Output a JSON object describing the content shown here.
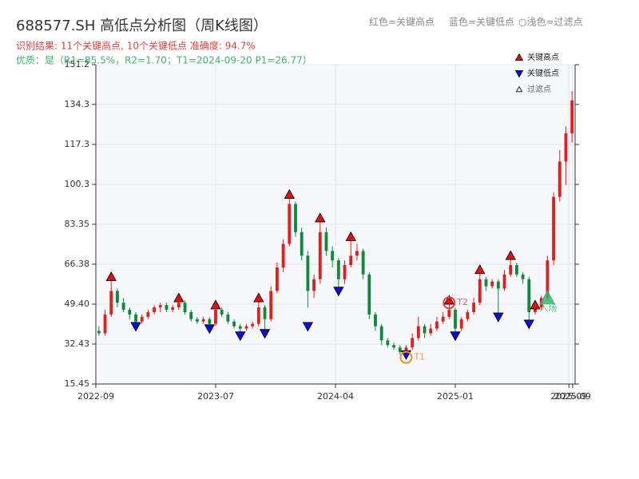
{
  "chart_data": {
    "type": "candlestick",
    "title": "688577.SH 高低点分析图（周K线图）",
    "subtitle": "识别结果: 11个关键高点, 10个关键低点  准确度: 94.7%",
    "quality": "优质：是（R1=85.5%，R2=1.70；T1=2024-09-20 P1=26.77）",
    "top_legend": [
      "红色=关键高点",
      "蓝色=关键低点",
      "○浅色=过滤点"
    ],
    "legend": [
      "关键高点",
      "关键低点",
      "过滤点"
    ],
    "up_color": "#e02020",
    "down_color": "#14883a",
    "high_color": "#e01010",
    "low_color": "#1010d0",
    "xlim": [
      0,
      78
    ],
    "xticks": [
      {
        "value": 0,
        "label": "2022-09"
      },
      {
        "value": 19.5,
        "label": "2023-07"
      },
      {
        "value": 39,
        "label": "2024-04"
      },
      {
        "value": 58.5,
        "label": "2025-01"
      },
      {
        "value": 77,
        "label": "2025-09"
      },
      {
        "value": 77.6,
        "label": "2025-09"
      }
    ],
    "ylim": [
      15.45,
      151.2
    ],
    "yticks": [
      15.45,
      32.43,
      {
        "value": 49.4,
        "label": "49.40"
      },
      66.38,
      83.35,
      100.3,
      117.3,
      134.3,
      151.2
    ],
    "grid": true,
    "ohlc": [
      [
        38,
        40,
        36,
        37
      ],
      [
        37,
        47,
        36,
        45
      ],
      [
        45,
        60,
        44,
        55
      ],
      [
        55,
        56,
        48,
        50
      ],
      [
        50,
        52,
        46,
        47
      ],
      [
        47,
        48,
        43,
        45
      ],
      [
        45,
        46,
        41,
        42
      ],
      [
        42,
        45,
        41,
        44
      ],
      [
        44,
        47,
        43,
        46
      ],
      [
        46,
        49,
        45,
        48
      ],
      [
        48,
        50,
        46,
        49
      ],
      [
        49,
        50,
        46,
        47
      ],
      [
        47,
        49,
        46,
        48
      ],
      [
        48,
        51,
        47,
        50
      ],
      [
        50,
        51,
        45,
        46
      ],
      [
        46,
        47,
        42,
        43
      ],
      [
        43,
        44,
        41,
        42
      ],
      [
        42,
        44,
        41,
        43
      ],
      [
        43,
        44,
        40,
        41
      ],
      [
        41,
        48,
        40,
        47
      ],
      [
        47,
        48,
        44,
        45
      ],
      [
        45,
        46,
        41,
        42
      ],
      [
        42,
        43,
        39,
        40
      ],
      [
        40,
        41,
        37,
        39
      ],
      [
        39,
        41,
        38,
        40
      ],
      [
        40,
        42,
        39,
        41
      ],
      [
        41,
        51,
        40,
        48
      ],
      [
        48,
        49,
        38,
        43
      ],
      [
        43,
        57,
        42,
        55
      ],
      [
        55,
        67,
        54,
        65
      ],
      [
        65,
        77,
        63,
        75
      ],
      [
        75,
        95,
        74,
        92
      ],
      [
        92,
        93,
        78,
        80
      ],
      [
        80,
        82,
        68,
        70
      ],
      [
        70,
        72,
        48,
        55
      ],
      [
        55,
        62,
        52,
        60
      ],
      [
        60,
        85,
        58,
        80
      ],
      [
        80,
        82,
        70,
        72
      ],
      [
        72,
        74,
        65,
        68
      ],
      [
        68,
        69,
        56,
        60
      ],
      [
        60,
        68,
        58,
        66
      ],
      [
        66,
        77,
        65,
        70
      ],
      [
        70,
        75,
        68,
        72
      ],
      [
        72,
        73,
        60,
        62
      ],
      [
        62,
        63,
        43,
        45
      ],
      [
        45,
        46,
        38,
        40
      ],
      [
        40,
        41,
        32,
        34
      ],
      [
        34,
        35,
        31,
        32
      ],
      [
        32,
        33,
        30,
        31
      ],
      [
        31,
        32,
        28,
        29
      ],
      [
        29,
        32,
        28,
        31
      ],
      [
        31,
        37,
        30,
        35
      ],
      [
        35,
        44,
        34,
        40
      ],
      [
        40,
        41,
        35,
        37
      ],
      [
        37,
        41,
        36,
        39
      ],
      [
        39,
        44,
        38,
        42
      ],
      [
        42,
        46,
        41,
        44
      ],
      [
        44,
        50,
        43,
        47
      ],
      [
        47,
        48,
        37,
        39
      ],
      [
        39,
        44,
        38,
        43
      ],
      [
        43,
        47,
        42,
        46
      ],
      [
        46,
        52,
        45,
        50
      ],
      [
        50,
        63,
        49,
        60
      ],
      [
        60,
        61,
        55,
        57
      ],
      [
        57,
        60,
        56,
        59
      ],
      [
        59,
        60,
        45,
        56
      ],
      [
        56,
        64,
        55,
        62
      ],
      [
        62,
        69,
        61,
        66
      ],
      [
        66,
        67,
        61,
        62
      ],
      [
        62,
        63,
        58,
        60
      ],
      [
        60,
        61,
        42,
        46
      ],
      [
        46,
        49,
        45,
        48
      ],
      [
        48,
        53,
        47,
        52
      ],
      [
        52,
        70,
        51,
        68
      ],
      [
        68,
        97,
        66,
        95
      ],
      [
        95,
        115,
        93,
        110
      ],
      [
        110,
        125,
        100,
        122
      ],
      [
        122,
        140,
        118,
        136
      ]
    ],
    "highs": [
      {
        "index": 2,
        "value": 61
      },
      {
        "index": 13,
        "value": 52
      },
      {
        "index": 19,
        "value": 49
      },
      {
        "index": 26,
        "value": 52
      },
      {
        "index": 31,
        "value": 96
      },
      {
        "index": 36,
        "value": 86
      },
      {
        "index": 41,
        "value": 78
      },
      {
        "index": 57,
        "value": 51
      },
      {
        "index": 62,
        "value": 64
      },
      {
        "index": 67,
        "value": 70
      },
      {
        "index": 71,
        "value": 49
      }
    ],
    "lows": [
      {
        "index": 6,
        "value": 40
      },
      {
        "index": 18,
        "value": 39
      },
      {
        "index": 23,
        "value": 36
      },
      {
        "index": 27,
        "value": 37
      },
      {
        "index": 34,
        "value": 40
      },
      {
        "index": 39,
        "value": 55
      },
      {
        "index": 50,
        "value": 28
      },
      {
        "index": 58,
        "value": 36
      },
      {
        "index": 65,
        "value": 44
      },
      {
        "index": 70,
        "value": 41
      }
    ],
    "points": [
      {
        "label": "T1",
        "index": 50,
        "value": 26.77,
        "color": "#f08c1a"
      },
      {
        "label": "T2",
        "index": 57,
        "value": 50,
        "color": "#e04040"
      },
      {
        "label": "入场",
        "index": 73,
        "value": 52,
        "color": "#3cb371"
      }
    ]
  }
}
